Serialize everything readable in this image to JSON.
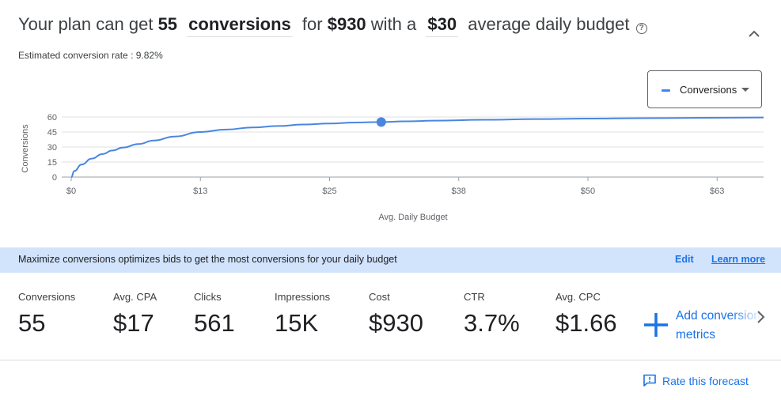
{
  "header": {
    "prefix": "Your plan can get",
    "conversions_count": "55",
    "metric_dropdown": "conversions",
    "for_text": "for",
    "cost": "$930",
    "with_text": "with a",
    "budget_dropdown": "$30",
    "suffix": "average daily budget",
    "help_icon": "help-circle-icon",
    "collapse_icon": "chevron-up-icon"
  },
  "estimated_rate": "Estimated conversion rate : 9.82%",
  "metric_select": {
    "label": "Conversions",
    "swatch_color": "#4285f4"
  },
  "chart_data": {
    "type": "line",
    "xlabel": "Avg. Daily Budget",
    "ylabel": "Conversions",
    "x_tick_labels": [
      "$0",
      "$13",
      "$25",
      "$38",
      "$50",
      "$63"
    ],
    "x_ticks": [
      0,
      12.5,
      25,
      37.5,
      50,
      62.5
    ],
    "y_tick_labels": [
      "0",
      "15",
      "30",
      "45",
      "60"
    ],
    "y_ticks": [
      0,
      15,
      30,
      45,
      60
    ],
    "xlim": [
      0,
      67
    ],
    "ylim": [
      0,
      60
    ],
    "grid": true,
    "series": [
      {
        "name": "Conversions",
        "color": "#4a86e0",
        "x": [
          0,
          0.3,
          1,
          2,
          3,
          4,
          5,
          6.5,
          8,
          10,
          12.5,
          15,
          17.5,
          20,
          22.5,
          25,
          27.5,
          30,
          32.5,
          35,
          40,
          45,
          50,
          55,
          60,
          67
        ],
        "y": [
          0,
          6,
          12.5,
          18.5,
          23,
          26.5,
          29.5,
          33,
          36.5,
          40.5,
          45,
          47.5,
          49.5,
          51,
          52.5,
          53.5,
          54.5,
          55,
          55.7,
          56.3,
          57.2,
          57.9,
          58.4,
          58.8,
          59.1,
          59.5
        ]
      }
    ],
    "highlight_point": {
      "x": 30,
      "y": 55
    }
  },
  "banner": {
    "message": "Maximize conversions optimizes bids to get the most conversions for your daily budget",
    "edit": "Edit",
    "learn_more": "Learn more"
  },
  "stats": [
    {
      "label": "Conversions",
      "value": "55"
    },
    {
      "label": "Avg. CPA",
      "value": "$17"
    },
    {
      "label": "Clicks",
      "value": "561"
    },
    {
      "label": "Impressions",
      "value": "15K"
    },
    {
      "label": "Cost",
      "value": "$930"
    },
    {
      "label": "CTR",
      "value": "3.7%"
    },
    {
      "label": "Avg. CPC",
      "value": "$1.66"
    }
  ],
  "add_metrics": {
    "line1": "Add conversion",
    "line2": "metrics",
    "icon": "plus-icon"
  },
  "next_icon": "chevron-right-icon",
  "rate_forecast": {
    "label": "Rate this forecast",
    "icon": "feedback-icon"
  }
}
